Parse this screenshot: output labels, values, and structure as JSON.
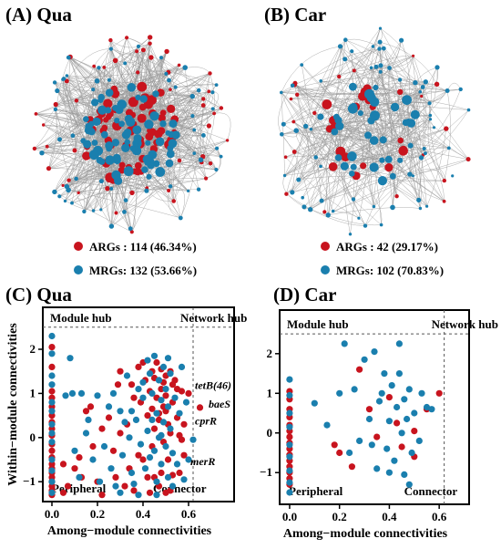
{
  "panels": {
    "A": {
      "title": "(A) Qua",
      "legend": [
        {
          "label": "ARGs : 114 (46.34%)",
          "color": "#c8141e"
        },
        {
          "label": "MRGs: 132 (53.66%)",
          "color": "#1a7fae"
        }
      ]
    },
    "B": {
      "title": "(B) Car",
      "legend": [
        {
          "label": "ARGs : 42 (29.17%)",
          "color": "#c8141e"
        },
        {
          "label": "MRGs: 102 (70.83%)",
          "color": "#1a7fae"
        }
      ]
    }
  },
  "chart_data": [
    {
      "type": "scatter",
      "title": "(C) Qua",
      "xlabel": "Among−module connectivities",
      "ylabel": "Within−module connectivities",
      "xlim": [
        -0.04,
        0.8
      ],
      "ylim": [
        -1.45,
        2.95
      ],
      "xticks": [
        "0.0",
        "0.2",
        "0.4",
        "0.6"
      ],
      "xtick_values": [
        0,
        0.2,
        0.4,
        0.6
      ],
      "yticks": [
        "−1",
        "0",
        "1",
        "2"
      ],
      "ytick_values": [
        -1,
        0,
        1,
        2
      ],
      "thresholds": {
        "x": 0.62,
        "y": 2.5
      },
      "regions": {
        "module_hub": "Module hub",
        "network_hub": "Network hub",
        "peripheral": "Peripheral",
        "connector": "Connector"
      },
      "annotations": [
        {
          "text": "tetB(46)",
          "x": 0.62,
          "y": 1.1
        },
        {
          "text": "baeS",
          "x": 0.68,
          "y": 0.68
        },
        {
          "text": "cprR",
          "x": 0.62,
          "y": 0.3
        },
        {
          "text": "merR",
          "x": 0.6,
          "y": -0.62
        }
      ],
      "series": [
        {
          "name": "ARGs",
          "color": "#c8141e",
          "points": [
            [
              0,
              -1.3
            ],
            [
              0,
              -1.2
            ],
            [
              0,
              -1.1
            ],
            [
              0,
              -1
            ],
            [
              0,
              -0.9
            ],
            [
              0,
              -0.8
            ],
            [
              0,
              -0.7
            ],
            [
              0,
              -0.6
            ],
            [
              0,
              -0.45
            ],
            [
              0,
              -0.3
            ],
            [
              0,
              -0.15
            ],
            [
              0,
              0.05
            ],
            [
              0,
              0.2
            ],
            [
              0,
              0.35
            ],
            [
              0,
              0.5
            ],
            [
              0,
              0.7
            ],
            [
              0,
              0.9
            ],
            [
              0,
              1.05
            ],
            [
              0,
              1.6
            ],
            [
              0,
              2.05
            ],
            [
              0.05,
              -0.6
            ],
            [
              0.05,
              -1.25
            ],
            [
              0.07,
              -1.1
            ],
            [
              0.1,
              -0.7
            ],
            [
              0.13,
              -0.9
            ],
            [
              0.15,
              0.6
            ],
            [
              0.2,
              -1.0
            ],
            [
              0.22,
              -1.3
            ],
            [
              0.25,
              0.45
            ],
            [
              0.28,
              -0.9
            ],
            [
              0.3,
              1.5
            ],
            [
              0.32,
              -1.1
            ],
            [
              0.33,
              0.3
            ],
            [
              0.35,
              1.2
            ],
            [
              0.36,
              -1.2
            ],
            [
              0.38,
              1.6
            ],
            [
              0.39,
              0.8
            ],
            [
              0.4,
              -0.5
            ],
            [
              0.4,
              1.7
            ],
            [
              0.41,
              1.3
            ],
            [
              0.42,
              0.5
            ],
            [
              0.43,
              1.05
            ],
            [
              0.44,
              -0.2
            ],
            [
              0.44,
              1.5
            ],
            [
              0.45,
              -0.9
            ],
            [
              0.45,
              0.2
            ],
            [
              0.46,
              1.7
            ],
            [
              0.46,
              0.9
            ],
            [
              0.47,
              0.4
            ],
            [
              0.47,
              -1.1
            ],
            [
              0.48,
              1.55
            ],
            [
              0.48,
              1.1
            ],
            [
              0.49,
              0.7
            ],
            [
              0.49,
              -0.1
            ],
            [
              0.5,
              1.4
            ],
            [
              0.5,
              0.95
            ],
            [
              0.51,
              -0.5
            ],
            [
              0.51,
              0.3
            ],
            [
              0.52,
              1.5
            ],
            [
              0.52,
              -1.2
            ],
            [
              0.53,
              1.2
            ],
            [
              0.53,
              0.8
            ],
            [
              0.54,
              1.3
            ],
            [
              0.55,
              0.45
            ],
            [
              0.55,
              1.1
            ],
            [
              0.56,
              0.05
            ],
            [
              0.57,
              1.05
            ],
            [
              0.58,
              -0.4
            ],
            [
              0.6,
              1.0
            ],
            [
              0.65,
              0.68
            ],
            [
              0.58,
              0.3
            ],
            [
              0.56,
              -0.8
            ],
            [
              0.5,
              -1.25
            ],
            [
              0.42,
              -0.9
            ],
            [
              0.38,
              -0.4
            ],
            [
              0.36,
              0.9
            ],
            [
              0.3,
              0.1
            ],
            [
              0.27,
              -0.3
            ],
            [
              0.22,
              0.2
            ],
            [
              0.18,
              -0.2
            ],
            [
              0.12,
              -0.45
            ],
            [
              0.17,
              0.7
            ],
            [
              0.29,
              1.2
            ],
            [
              0.34,
              -0.7
            ],
            [
              0.44,
              0.65
            ],
            [
              0.48,
              -0.8
            ],
            [
              0.52,
              0.1
            ],
            [
              0.57,
              -0.05
            ],
            [
              0.49,
              1.25
            ],
            [
              0.43,
              -1.25
            ],
            [
              0.47,
              0.55
            ],
            [
              0.53,
              -0.85
            ],
            [
              0.45,
              1.35
            ],
            [
              0.5,
              0.6
            ]
          ]
        },
        {
          "name": "MRGs",
          "color": "#1a7fae",
          "points": [
            [
              0,
              2.3
            ],
            [
              0,
              1.9
            ],
            [
              0,
              1.4
            ],
            [
              0,
              1.2
            ],
            [
              0,
              0.8
            ],
            [
              0,
              0.6
            ],
            [
              0,
              0.3
            ],
            [
              0,
              0.1
            ],
            [
              0,
              -0.1
            ],
            [
              0,
              -0.5
            ],
            [
              0,
              -0.75
            ],
            [
              0,
              -1.0
            ],
            [
              0,
              -1.25
            ],
            [
              0.08,
              1.8
            ],
            [
              0.09,
              1.0
            ],
            [
              0.1,
              -0.3
            ],
            [
              0.12,
              -0.9
            ],
            [
              0.15,
              0.1
            ],
            [
              0.18,
              -0.5
            ],
            [
              0.2,
              0.95
            ],
            [
              0.23,
              -0.2
            ],
            [
              0.25,
              0.7
            ],
            [
              0.27,
              1.0
            ],
            [
              0.28,
              -1.1
            ],
            [
              0.3,
              0.6
            ],
            [
              0.31,
              -0.4
            ],
            [
              0.33,
              1.4
            ],
            [
              0.34,
              0.0
            ],
            [
              0.35,
              -0.8
            ],
            [
              0.37,
              0.4
            ],
            [
              0.38,
              1.1
            ],
            [
              0.39,
              -0.15
            ],
            [
              0.4,
              0.9
            ],
            [
              0.41,
              -0.7
            ],
            [
              0.42,
              1.75
            ],
            [
              0.42,
              0.15
            ],
            [
              0.43,
              -0.45
            ],
            [
              0.44,
              1.0
            ],
            [
              0.45,
              1.85
            ],
            [
              0.45,
              -0.3
            ],
            [
              0.46,
              0.55
            ],
            [
              0.46,
              -1.0
            ],
            [
              0.47,
              1.3
            ],
            [
              0.47,
              0.0
            ],
            [
              0.48,
              0.85
            ],
            [
              0.48,
              -0.6
            ],
            [
              0.49,
              1.6
            ],
            [
              0.49,
              0.35
            ],
            [
              0.5,
              -0.2
            ],
            [
              0.5,
              1.1
            ],
            [
              0.51,
              0.7
            ],
            [
              0.51,
              -0.9
            ],
            [
              0.52,
              0.2
            ],
            [
              0.52,
              1.45
            ],
            [
              0.53,
              -0.35
            ],
            [
              0.54,
              0.9
            ],
            [
              0.55,
              -0.6
            ],
            [
              0.56,
              0.55
            ],
            [
              0.57,
              1.6
            ],
            [
              0.58,
              -0.95
            ],
            [
              0.6,
              -0.5
            ],
            [
              0.62,
              -0.05
            ],
            [
              0.59,
              0.8
            ],
            [
              0.43,
              1.45
            ],
            [
              0.36,
              -1.05
            ],
            [
              0.32,
              0.35
            ],
            [
              0.26,
              -0.7
            ],
            [
              0.21,
              -1.0
            ],
            [
              0.16,
              0.4
            ],
            [
              0.13,
              1.0
            ],
            [
              0.06,
              0.95
            ],
            [
              0.3,
              -1.25
            ],
            [
              0.38,
              -1.3
            ],
            [
              0.46,
              -1.3
            ],
            [
              0.53,
              -1.1
            ],
            [
              0.44,
              0.4
            ],
            [
              0.48,
              0.05
            ],
            [
              0.51,
              1.8
            ],
            [
              0.4,
              1.25
            ],
            [
              0.35,
              0.6
            ]
          ]
        }
      ]
    },
    {
      "type": "scatter",
      "title": "(D) Car",
      "xlabel": "Among−module connectivities",
      "ylabel": "",
      "xlim": [
        -0.04,
        0.72
      ],
      "ylim": [
        -1.8,
        3.1
      ],
      "xticks": [
        "0.0",
        "0.2",
        "0.4",
        "0.6"
      ],
      "xtick_values": [
        0,
        0.2,
        0.4,
        0.6
      ],
      "yticks": [
        "−1",
        "0",
        "1",
        "2"
      ],
      "ytick_values": [
        -1,
        0,
        1,
        2
      ],
      "thresholds": {
        "x": 0.62,
        "y": 2.5
      },
      "regions": {
        "module_hub": "Module hub",
        "network_hub": "Network hub",
        "peripheral": "Peripheral",
        "connector": "Connector"
      },
      "annotations": [],
      "series": [
        {
          "name": "ARGs",
          "color": "#c8141e",
          "points": [
            [
              0,
              -1.3
            ],
            [
              0,
              -1.15
            ],
            [
              0,
              -1.0
            ],
            [
              0,
              -0.85
            ],
            [
              0,
              -0.7
            ],
            [
              0,
              -0.55
            ],
            [
              0,
              -0.4
            ],
            [
              0,
              -0.25
            ],
            [
              0,
              -0.1
            ],
            [
              0,
              0.05
            ],
            [
              0,
              0.2
            ],
            [
              0,
              0.4
            ],
            [
              0,
              0.6
            ],
            [
              0,
              0.85
            ],
            [
              0,
              1.05
            ],
            [
              0.18,
              -0.3
            ],
            [
              0.2,
              -0.5
            ],
            [
              0.25,
              -0.85
            ],
            [
              0.28,
              1.6
            ],
            [
              0.32,
              0.6
            ],
            [
              0.4,
              0.9
            ],
            [
              0.45,
              -0.35
            ],
            [
              0.5,
              0.05
            ],
            [
              0.55,
              0.6
            ],
            [
              0.6,
              1.0
            ],
            [
              0.5,
              -0.6
            ],
            [
              0.43,
              0.25
            ],
            [
              0.35,
              -0.1
            ]
          ]
        },
        {
          "name": "MRGs",
          "color": "#1a7fae",
          "points": [
            [
              0,
              1.35
            ],
            [
              0,
              0.95
            ],
            [
              0,
              0.5
            ],
            [
              0,
              0.15
            ],
            [
              0,
              -0.3
            ],
            [
              0,
              -0.6
            ],
            [
              0,
              -0.95
            ],
            [
              0,
              -1.25
            ],
            [
              0,
              -1.5
            ],
            [
              0.1,
              0.75
            ],
            [
              0.15,
              0.2
            ],
            [
              0.2,
              1.0
            ],
            [
              0.22,
              2.25
            ],
            [
              0.24,
              -0.5
            ],
            [
              0.26,
              1.1
            ],
            [
              0.28,
              -0.2
            ],
            [
              0.3,
              1.85
            ],
            [
              0.32,
              0.35
            ],
            [
              0.34,
              2.05
            ],
            [
              0.35,
              -0.9
            ],
            [
              0.36,
              0.8
            ],
            [
              0.38,
              1.5
            ],
            [
              0.39,
              -0.4
            ],
            [
              0.4,
              0.3
            ],
            [
              0.41,
              1.2
            ],
            [
              0.42,
              -0.7
            ],
            [
              0.43,
              0.65
            ],
            [
              0.44,
              2.25
            ],
            [
              0.45,
              0.0
            ],
            [
              0.46,
              -1.05
            ],
            [
              0.47,
              0.35
            ],
            [
              0.48,
              1.1
            ],
            [
              0.49,
              -0.5
            ],
            [
              0.5,
              0.5
            ],
            [
              0.52,
              -0.2
            ],
            [
              0.53,
              1.0
            ],
            [
              0.55,
              0.65
            ],
            [
              0.57,
              0.6
            ],
            [
              0.48,
              -1.3
            ],
            [
              0.4,
              -1.0
            ],
            [
              0.33,
              -0.3
            ],
            [
              0.37,
              1.0
            ],
            [
              0.44,
              1.5
            ],
            [
              0.46,
              0.85
            ]
          ]
        }
      ]
    }
  ]
}
